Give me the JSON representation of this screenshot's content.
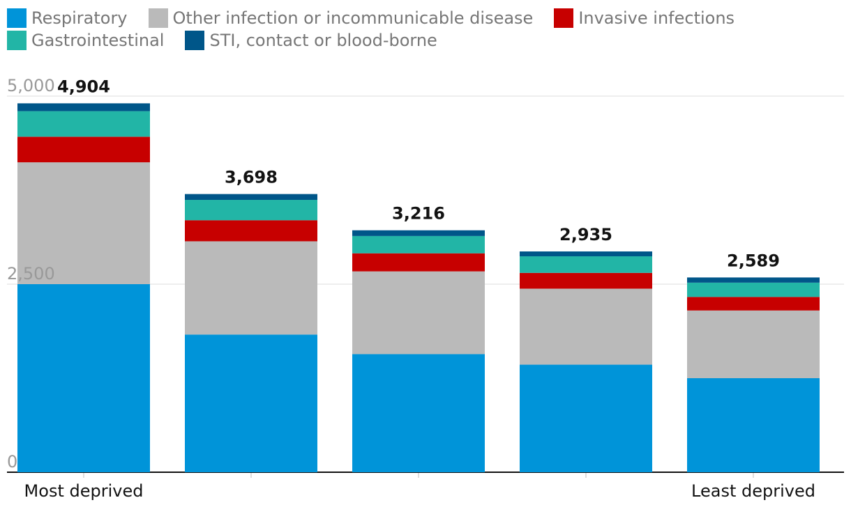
{
  "chart_data": {
    "type": "bar",
    "stacked": true,
    "categories": [
      "Most deprived",
      "",
      "",
      "",
      "Least deprived"
    ],
    "series": [
      {
        "name": "Respiratory",
        "color": "#0094d9",
        "values": [
          2500,
          1830,
          1570,
          1430,
          1250
        ]
      },
      {
        "name": "Other infection or incommunicable disease",
        "color": "#bababa",
        "values": [
          1620,
          1240,
          1100,
          1010,
          900
        ]
      },
      {
        "name": "Invasive infections",
        "color": "#c70000",
        "values": [
          340,
          280,
          240,
          210,
          180
        ]
      },
      {
        "name": "Gastrointestinal",
        "color": "#22b5a6",
        "values": [
          340,
          270,
          230,
          220,
          190
        ]
      },
      {
        "name": "STI, contact or blood-borne",
        "color": "#005689",
        "values": [
          104,
          78,
          76,
          65,
          69
        ]
      }
    ],
    "totals": [
      "4,904",
      "3,698",
      "3,216",
      "2,935",
      "2,589"
    ],
    "yticks": [
      {
        "value": 0,
        "label": "0"
      },
      {
        "value": 2500,
        "label": "2,500"
      },
      {
        "value": 5000,
        "label": "5,000"
      }
    ],
    "ylim": [
      0,
      5000
    ],
    "title": "",
    "xlabel": "",
    "ylabel": "",
    "legend_position": "top"
  }
}
